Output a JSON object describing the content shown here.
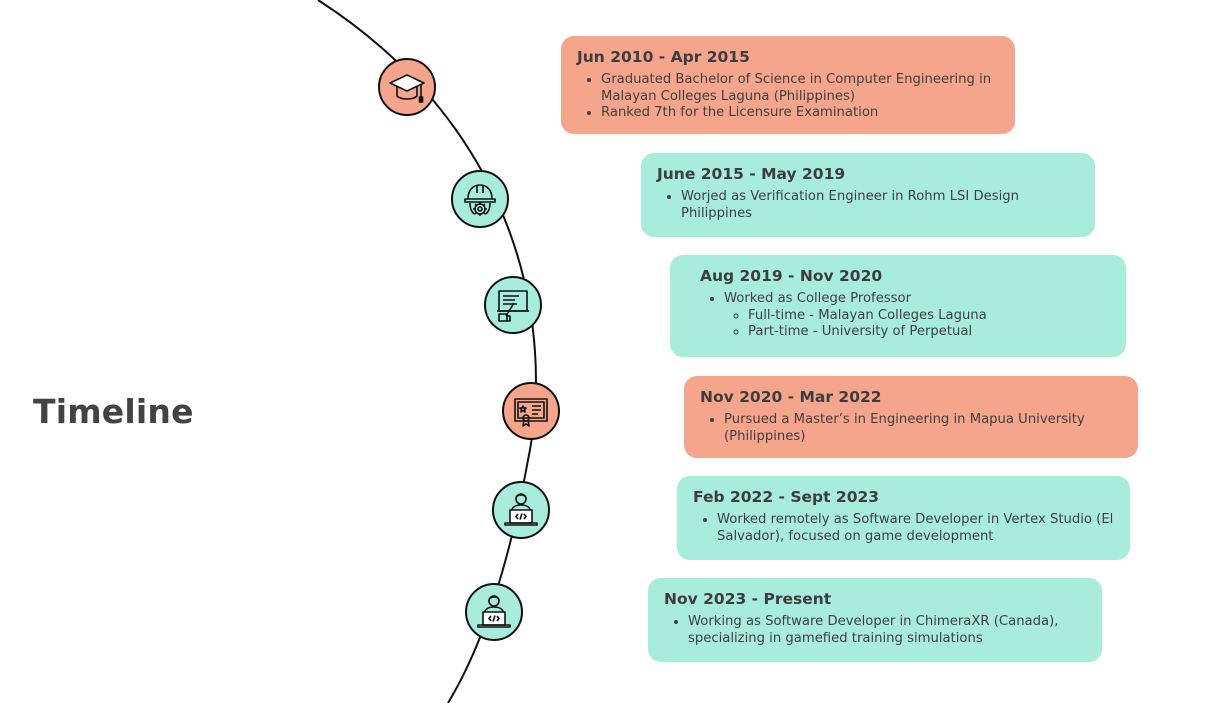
{
  "title": "Timeline",
  "colors": {
    "salmon": "#f5a58b",
    "mint": "#a8ecdc",
    "line": "#111111"
  },
  "entries": [
    {
      "date": "Jun 2010 - Apr 2015",
      "color": "salmon",
      "icon": "graduation-cap-icon",
      "bullets": [
        {
          "text": "Graduated Bachelor of Science in Computer Engineering in Malayan Colleges Laguna (Philippines)"
        },
        {
          "text": "Ranked 7th for the Licensure Examination"
        }
      ]
    },
    {
      "date": "June 2015 - May 2019",
      "color": "mint",
      "icon": "engineer-helmet-gear-icon",
      "bullets": [
        {
          "text": "Worjed as Verification Engineer in Rohm LSI Design Philippines"
        }
      ]
    },
    {
      "date": "Aug 2019 - Nov 2020",
      "color": "mint",
      "icon": "teaching-board-icon",
      "bullets": [
        {
          "text": "Worked as College Professor",
          "sub": [
            "Full-time - Malayan Colleges Laguna",
            "Part-time - University of Perpetual"
          ]
        }
      ]
    },
    {
      "date": "Nov 2020 - Mar 2022",
      "color": "salmon",
      "icon": "certificate-icon",
      "bullets": [
        {
          "text": "Pursued a Master’s in Engineering in Mapua University (Philippines)"
        }
      ]
    },
    {
      "date": "Feb 2022 - Sept 2023",
      "color": "mint",
      "icon": "developer-laptop-icon",
      "bullets": [
        {
          "text": "Worked remotely as Software Developer in Vertex Studio (El Salvador), focused on game development"
        }
      ]
    },
    {
      "date": "Nov 2023 - Present",
      "color": "mint",
      "icon": "developer-laptop-icon",
      "bullets": [
        {
          "text": "Working as Software Developer in ChimeraXR (Canada), specializing in gamefied training simulations"
        }
      ]
    }
  ]
}
